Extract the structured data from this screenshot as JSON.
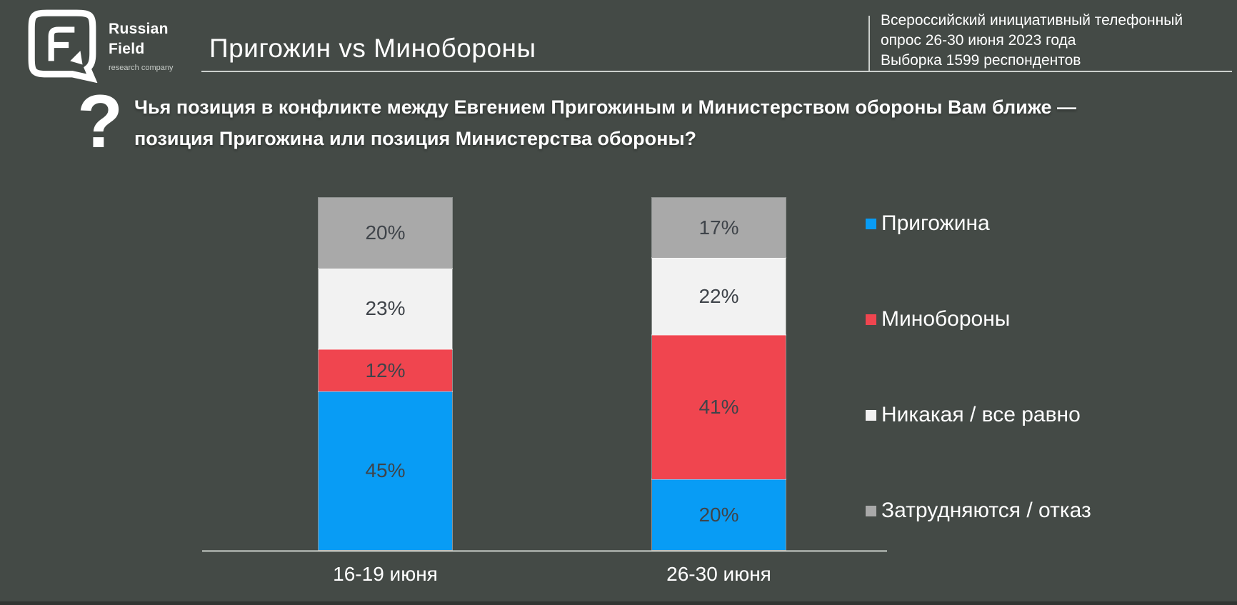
{
  "colors": {
    "background": "#444a46",
    "text": "#ffffff",
    "divider": "#ccd0cd",
    "axis": "#9ba19c",
    "value_label": "#3f444a"
  },
  "header": {
    "brand": {
      "line1": "Russian",
      "line2": "Field",
      "tagline": "research company"
    },
    "title": "Пригожин vs Минобороны",
    "survey_meta_lines": [
      "Всероссийский инициативный телефонный",
      "опрос 26-30 июня 2023 года",
      "Выборка 1599 респондентов"
    ]
  },
  "question": {
    "icon_glyph": "?",
    "lines": [
      "Чья позиция в конфликте между Евгением Пригожиным и Министерством обороны Вам ближе —",
      "позиция Пригожина или позиция Министерства обороны?"
    ]
  },
  "chart_data": {
    "type": "bar",
    "subtype": "stacked-column",
    "title": "Пригожин vs Минобороны",
    "categories": [
      "16-19 июня",
      "26-30 июня"
    ],
    "series": [
      {
        "name": "Пригожина",
        "color": "#089cf5",
        "values": [
          45,
          20
        ]
      },
      {
        "name": "Минобороны",
        "color": "#f0454f",
        "values": [
          12,
          41
        ]
      },
      {
        "name": "Никакая / все равно",
        "color": "#f2f2f2",
        "values": [
          23,
          22
        ]
      },
      {
        "name": "Затрудняются / отказ",
        "color": "#a9a9a9",
        "values": [
          20,
          17
        ]
      }
    ],
    "value_suffix": "%",
    "ylim": [
      0,
      100
    ],
    "grid": false,
    "legend_position": "right",
    "axis_color": "#9ba19c",
    "value_label_color": "#3f444a"
  }
}
